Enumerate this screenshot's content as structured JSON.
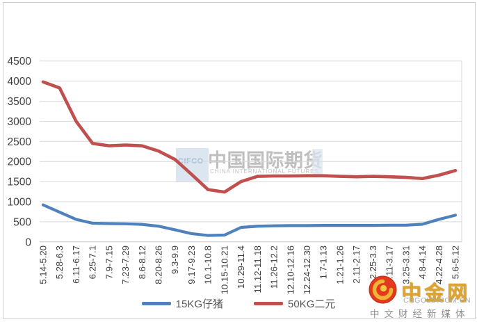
{
  "chart_data": {
    "type": "line",
    "title": "",
    "xlabel": "",
    "ylabel": "",
    "categories": [
      "5.14-5.20",
      "5.28-6.3",
      "6.11-6.17",
      "6.25-7.1",
      "7.9-7.15",
      "7.23-7.29",
      "8.6-8.12",
      "8.20-8.26",
      "9.3-9.9",
      "9.17-9.23",
      "10.1-10.8",
      "10.15-10.21",
      "10.29-11.4",
      "11.12-11.18",
      "11.26-12.2",
      "12.10-12.16",
      "12.24-12.30",
      "1.7-1.13",
      "1.21-1.26",
      "2.11-2.17",
      "2.25-3.3",
      "3.11-3.17",
      "3.25-3.31",
      "4.8-4.14",
      "4.22-4.28",
      "5.6-5.12"
    ],
    "series": [
      {
        "name": "15KG仔猪",
        "color": "#4f81bd",
        "values": [
          920,
          740,
          560,
          465,
          455,
          450,
          435,
          390,
          300,
          205,
          160,
          170,
          360,
          390,
          400,
          405,
          405,
          410,
          410,
          410,
          410,
          415,
          415,
          440,
          560,
          665
        ]
      },
      {
        "name": "50KG二元",
        "color": "#c0504d",
        "values": [
          3980,
          3830,
          3000,
          2450,
          2390,
          2410,
          2390,
          2260,
          2050,
          1680,
          1300,
          1240,
          1500,
          1630,
          1640,
          1640,
          1645,
          1645,
          1630,
          1620,
          1630,
          1620,
          1605,
          1575,
          1660,
          1775
        ]
      }
    ],
    "ylim": [
      0,
      4500
    ],
    "ytick_step": 500,
    "yticks": [
      "0",
      "500",
      "1000",
      "1500",
      "2000",
      "2500",
      "3000",
      "3500",
      "4000",
      "4500"
    ],
    "grid": "horizontal",
    "gridline_color": "#d9d9d9",
    "axis_line_color": "#c6c6c6",
    "tick_label_color": "#3f3f3f",
    "legend_position": "bottom-center"
  },
  "watermark": {
    "box_text": "CIFCO",
    "title": "中国国际期货",
    "subtitle": "CHINA INTERNATIONAL FUTURES"
  },
  "branding": {
    "site_name": "中金网",
    "site_url": "CNGOLD.COM.CN",
    "tagline": "中文财经新媒体",
    "icon": "phoenix-swirl-icon",
    "circle_color": "#e23a1f",
    "swirl_color": "#f2b234"
  }
}
